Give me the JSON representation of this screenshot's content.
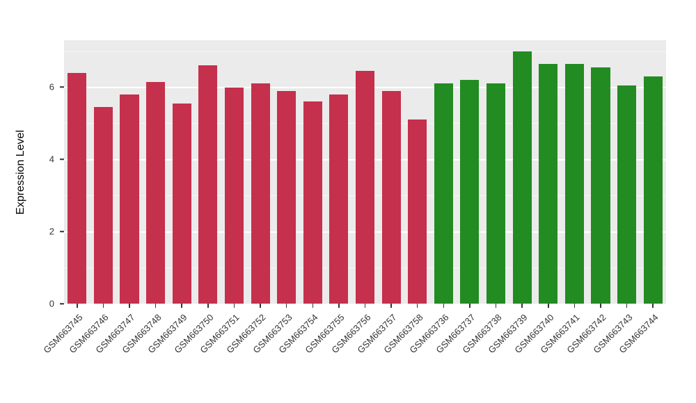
{
  "chart_data": {
    "type": "bar",
    "title": "",
    "xlabel": "",
    "ylabel": "Expression Level",
    "ylim": [
      0,
      7.3
    ],
    "yticks": [
      0,
      2,
      4,
      6
    ],
    "minor_gridlines": [
      1,
      3,
      5,
      7
    ],
    "grid": "on",
    "legend": "none",
    "panel_bg": "#EBEBEB",
    "categories": [
      "GSM663745",
      "GSM663746",
      "GSM663747",
      "GSM663748",
      "GSM663749",
      "GSM663750",
      "GSM663751",
      "GSM663752",
      "GSM663753",
      "GSM663754",
      "GSM663755",
      "GSM663756",
      "GSM663757",
      "GSM663758",
      "GSM663736",
      "GSM663737",
      "GSM663738",
      "GSM663739",
      "GSM663740",
      "GSM663741",
      "GSM663742",
      "GSM663743",
      "GSM663744"
    ],
    "values": [
      6.4,
      5.45,
      5.8,
      6.15,
      5.55,
      6.6,
      6.0,
      6.1,
      5.9,
      5.6,
      5.8,
      6.45,
      5.9,
      5.1,
      6.1,
      6.2,
      6.1,
      7.0,
      6.65,
      6.65,
      6.55,
      6.05,
      6.3
    ],
    "groups": [
      "red",
      "red",
      "red",
      "red",
      "red",
      "red",
      "red",
      "red",
      "red",
      "red",
      "red",
      "red",
      "red",
      "red",
      "green",
      "green",
      "green",
      "green",
      "green",
      "green",
      "green",
      "green",
      "green"
    ],
    "group_colors": {
      "red": "#C5304C",
      "green": "#228B22"
    }
  }
}
